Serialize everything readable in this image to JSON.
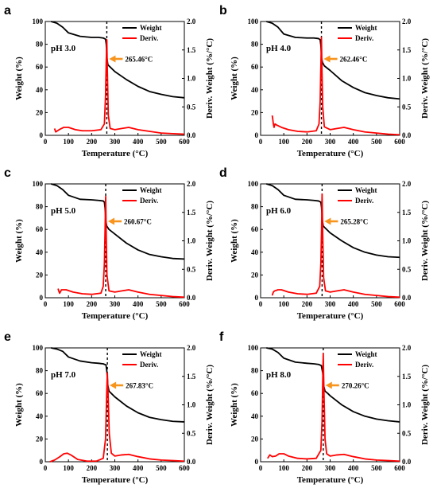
{
  "colors": {
    "weight": "#000000",
    "deriv": "#ff0000",
    "arrow": "#f7941d",
    "axis": "#000000"
  },
  "chart_data": [
    {
      "panel": "a",
      "type": "line",
      "annotation": "pH 3.0",
      "peak_label": "265.46°C",
      "peak_temp": 265.46,
      "xlabel": "Temperature (°C)",
      "ylabel": "Weight (%)",
      "y2label": "Deriv. Weight (%/°C)",
      "xlim": [
        0,
        600
      ],
      "ylim": [
        0,
        100
      ],
      "y2lim": [
        0,
        2.0
      ],
      "xticks": [
        "0",
        "100",
        "200",
        "300",
        "400",
        "500",
        "600"
      ],
      "yticks": [
        "0",
        "20",
        "40",
        "60",
        "80",
        "100"
      ],
      "y2ticks": [
        "0.0",
        "0.5",
        "1.0",
        "1.5",
        "2.0"
      ],
      "legend": [
        "Weight",
        "Deriv."
      ],
      "series": [
        {
          "name": "Weight",
          "axis": "left",
          "x": [
            25,
            50,
            75,
            100,
            150,
            200,
            230,
            250,
            260,
            263,
            266,
            270,
            280,
            300,
            350,
            400,
            450,
            500,
            550,
            600
          ],
          "y": [
            100,
            98.5,
            95,
            90,
            87,
            86,
            86,
            85.5,
            84.5,
            80,
            68,
            62,
            60,
            56,
            49,
            43,
            38.5,
            36,
            34,
            33
          ]
        },
        {
          "name": "Deriv.",
          "axis": "right",
          "x": [
            40,
            45,
            60,
            80,
            100,
            130,
            160,
            200,
            240,
            255,
            260,
            263,
            265.46,
            268,
            272,
            280,
            300,
            330,
            360,
            400,
            450,
            500,
            550,
            600
          ],
          "y": [
            0.12,
            0.06,
            0.1,
            0.14,
            0.14,
            0.1,
            0.08,
            0.08,
            0.1,
            0.2,
            0.7,
            1.3,
            1.68,
            1.1,
            0.35,
            0.12,
            0.1,
            0.12,
            0.14,
            0.1,
            0.07,
            0.04,
            0.03,
            0.02
          ]
        }
      ]
    },
    {
      "panel": "b",
      "type": "line",
      "annotation": "pH 4.0",
      "peak_label": "262.46°C",
      "peak_temp": 262.46,
      "xlabel": "Temperature (°C)",
      "ylabel": "Weight (%)",
      "y2label": "Deriv. Weight (%/°C)",
      "xlim": [
        0,
        600
      ],
      "ylim": [
        0,
        100
      ],
      "y2lim": [
        0,
        2.0
      ],
      "xticks": [
        "0",
        "100",
        "200",
        "300",
        "400",
        "500",
        "600"
      ],
      "yticks": [
        "0",
        "20",
        "40",
        "60",
        "80",
        "100"
      ],
      "y2ticks": [
        "0.0",
        "0.5",
        "1.0",
        "1.5",
        "2.0"
      ],
      "legend": [
        "Weight",
        "Deriv."
      ],
      "series": [
        {
          "name": "Weight",
          "axis": "left",
          "x": [
            25,
            50,
            75,
            100,
            150,
            200,
            230,
            250,
            257,
            260,
            263,
            267,
            275,
            300,
            350,
            400,
            450,
            500,
            550,
            600
          ],
          "y": [
            100,
            98.5,
            95,
            89,
            86,
            85.5,
            85.5,
            85,
            84,
            79,
            68,
            64,
            61,
            57,
            48,
            42,
            37.5,
            35,
            33,
            32
          ]
        },
        {
          "name": "Deriv.",
          "axis": "right",
          "x": [
            50,
            52,
            55,
            58,
            62,
            70,
            90,
            120,
            160,
            200,
            240,
            252,
            257,
            260,
            262.46,
            265,
            268,
            275,
            300,
            330,
            360,
            400,
            450,
            500,
            550,
            600
          ],
          "y": [
            0.35,
            0.3,
            0.2,
            0.14,
            0.2,
            0.18,
            0.14,
            0.1,
            0.07,
            0.06,
            0.08,
            0.2,
            0.6,
            1.2,
            1.72,
            1.1,
            0.5,
            0.15,
            0.1,
            0.12,
            0.14,
            0.1,
            0.06,
            0.04,
            0.02,
            0.01
          ]
        }
      ]
    },
    {
      "panel": "c",
      "type": "line",
      "annotation": "pH 5.0",
      "peak_label": "260.67°C",
      "peak_temp": 260.67,
      "xlabel": "Temperature (°C)",
      "ylabel": "Weight (%)",
      "y2label": "Deriv. Weight (%/°C)",
      "xlim": [
        0,
        600
      ],
      "ylim": [
        0,
        100
      ],
      "y2lim": [
        0,
        2.0
      ],
      "xticks": [
        "0",
        "100",
        "200",
        "300",
        "400",
        "500",
        "600"
      ],
      "yticks": [
        "0",
        "20",
        "40",
        "60",
        "80",
        "100"
      ],
      "y2ticks": [
        "0.0",
        "0.5",
        "1.0",
        "1.5",
        "2.0"
      ],
      "legend": [
        "Weight",
        "Deriv."
      ],
      "series": [
        {
          "name": "Weight",
          "axis": "left",
          "x": [
            25,
            50,
            75,
            100,
            150,
            200,
            230,
            250,
            255,
            258,
            261,
            265,
            275,
            300,
            350,
            400,
            450,
            500,
            550,
            600
          ],
          "y": [
            100,
            98.5,
            95,
            90,
            86.5,
            86,
            85.5,
            85,
            84,
            79,
            68,
            63,
            60,
            56,
            48,
            42,
            38,
            36,
            34.5,
            34
          ]
        },
        {
          "name": "Deriv.",
          "axis": "right",
          "x": [
            55,
            58,
            62,
            70,
            90,
            120,
            160,
            200,
            240,
            250,
            255,
            258,
            260.67,
            263,
            266,
            275,
            300,
            330,
            360,
            400,
            450,
            500,
            550,
            600
          ],
          "y": [
            0.16,
            0.12,
            0.08,
            0.14,
            0.14,
            0.1,
            0.07,
            0.06,
            0.08,
            0.2,
            0.6,
            1.2,
            1.78,
            1.1,
            0.4,
            0.12,
            0.1,
            0.12,
            0.14,
            0.1,
            0.06,
            0.04,
            0.02,
            0.01
          ]
        }
      ]
    },
    {
      "panel": "d",
      "type": "line",
      "annotation": "pH 6.0",
      "peak_label": "265.28°C",
      "peak_temp": 265.28,
      "xlabel": "Temperature (°C)",
      "ylabel": "Weight (%)",
      "y2label": "Deriv. Weight (%/°C)",
      "xlim": [
        0,
        600
      ],
      "ylim": [
        0,
        100
      ],
      "y2lim": [
        0,
        2.0
      ],
      "xticks": [
        "0",
        "100",
        "200",
        "300",
        "400",
        "500",
        "600"
      ],
      "yticks": [
        "0",
        "20",
        "40",
        "60",
        "80",
        "100"
      ],
      "y2ticks": [
        "0.0",
        "0.5",
        "1.0",
        "1.5",
        "2.0"
      ],
      "legend": [
        "Weight",
        "Deriv."
      ],
      "series": [
        {
          "name": "Weight",
          "axis": "left",
          "x": [
            25,
            50,
            75,
            100,
            150,
            200,
            230,
            250,
            260,
            263,
            266,
            270,
            280,
            300,
            350,
            400,
            450,
            500,
            550,
            600
          ],
          "y": [
            100,
            98.5,
            95,
            90,
            86.5,
            86,
            85.5,
            85,
            84,
            79,
            69,
            63,
            61,
            57,
            50,
            44,
            40,
            37.5,
            36,
            35.5
          ]
        },
        {
          "name": "Deriv.",
          "axis": "right",
          "x": [
            50,
            55,
            60,
            75,
            90,
            120,
            160,
            200,
            240,
            255,
            260,
            263,
            265.28,
            268,
            272,
            280,
            300,
            330,
            360,
            400,
            450,
            500,
            550,
            600
          ],
          "y": [
            0.04,
            0.1,
            0.12,
            0.14,
            0.14,
            0.1,
            0.07,
            0.06,
            0.08,
            0.2,
            0.6,
            1.2,
            1.82,
            1.1,
            0.35,
            0.12,
            0.1,
            0.12,
            0.14,
            0.1,
            0.06,
            0.04,
            0.02,
            0.01
          ]
        }
      ]
    },
    {
      "panel": "e",
      "type": "line",
      "annotation": "pH 7.0",
      "peak_label": "267.83°C",
      "peak_temp": 267.83,
      "xlabel": "Temperature (°C)",
      "ylabel": "Weight (%)",
      "y2label": "Deriv. Weight (%/°C)",
      "xlim": [
        0,
        600
      ],
      "ylim": [
        0,
        100
      ],
      "y2lim": [
        0,
        2.0
      ],
      "xticks": [
        "0",
        "100",
        "200",
        "300",
        "400",
        "500",
        "600"
      ],
      "yticks": [
        "0",
        "20",
        "40",
        "60",
        "80",
        "100"
      ],
      "y2ticks": [
        "0.0",
        "0.5",
        "1.0",
        "1.5",
        "2.0"
      ],
      "legend": [
        "Weight",
        "Deriv."
      ],
      "series": [
        {
          "name": "Weight",
          "axis": "left",
          "x": [
            25,
            50,
            75,
            100,
            150,
            200,
            230,
            250,
            262,
            266,
            270,
            275,
            285,
            300,
            350,
            400,
            450,
            500,
            550,
            600
          ],
          "y": [
            100,
            99,
            97,
            92,
            88.5,
            87,
            86.5,
            86,
            85,
            79,
            67,
            62,
            60,
            57,
            49,
            43,
            39,
            37,
            35.5,
            35
          ]
        },
        {
          "name": "Deriv.",
          "axis": "right",
          "x": [
            20,
            40,
            60,
            80,
            95,
            110,
            140,
            180,
            220,
            250,
            260,
            265,
            267.83,
            271,
            276,
            285,
            300,
            330,
            360,
            400,
            450,
            500,
            550,
            600
          ],
          "y": [
            0.0,
            0.03,
            0.08,
            0.14,
            0.15,
            0.12,
            0.04,
            0.01,
            0.01,
            0.06,
            0.4,
            1.2,
            1.56,
            1.2,
            0.5,
            0.15,
            0.1,
            0.12,
            0.13,
            0.09,
            0.05,
            0.03,
            0.02,
            0.01
          ]
        }
      ]
    },
    {
      "panel": "f",
      "type": "line",
      "annotation": "pH 8.0",
      "peak_label": "270.26°C",
      "peak_temp": 270.26,
      "xlabel": "Temperature (°C)",
      "ylabel": "Weight (%)",
      "y2label": "Deriv. Weight (%/°C)",
      "xlim": [
        0,
        600
      ],
      "ylim": [
        0,
        100
      ],
      "y2lim": [
        0,
        2.0
      ],
      "xticks": [
        "0",
        "100",
        "200",
        "300",
        "400",
        "500",
        "600"
      ],
      "yticks": [
        "0",
        "20",
        "40",
        "60",
        "80",
        "100"
      ],
      "y2ticks": [
        "0.0",
        "0.5",
        "1.0",
        "1.5",
        "2.0"
      ],
      "legend": [
        "Weight",
        "Deriv."
      ],
      "series": [
        {
          "name": "Weight",
          "axis": "left",
          "x": [
            25,
            50,
            75,
            100,
            150,
            200,
            230,
            250,
            262,
            268,
            272,
            278,
            290,
            300,
            350,
            400,
            450,
            500,
            550,
            600
          ],
          "y": [
            100,
            99,
            96,
            91,
            87.5,
            86.5,
            86,
            85.5,
            84.5,
            78,
            67,
            62,
            60,
            58,
            50,
            44,
            40,
            37.5,
            36,
            35
          ]
        },
        {
          "name": "Deriv.",
          "axis": "right",
          "x": [
            30,
            40,
            50,
            65,
            80,
            100,
            120,
            160,
            200,
            240,
            260,
            265,
            268,
            270.26,
            273,
            278,
            285,
            300,
            330,
            360,
            400,
            450,
            500,
            550,
            600
          ],
          "y": [
            0.06,
            0.12,
            0.09,
            0.1,
            0.14,
            0.14,
            0.1,
            0.06,
            0.05,
            0.06,
            0.2,
            0.7,
            1.4,
            1.9,
            1.3,
            0.4,
            0.14,
            0.1,
            0.12,
            0.13,
            0.09,
            0.05,
            0.03,
            0.02,
            0.01
          ]
        }
      ]
    }
  ]
}
